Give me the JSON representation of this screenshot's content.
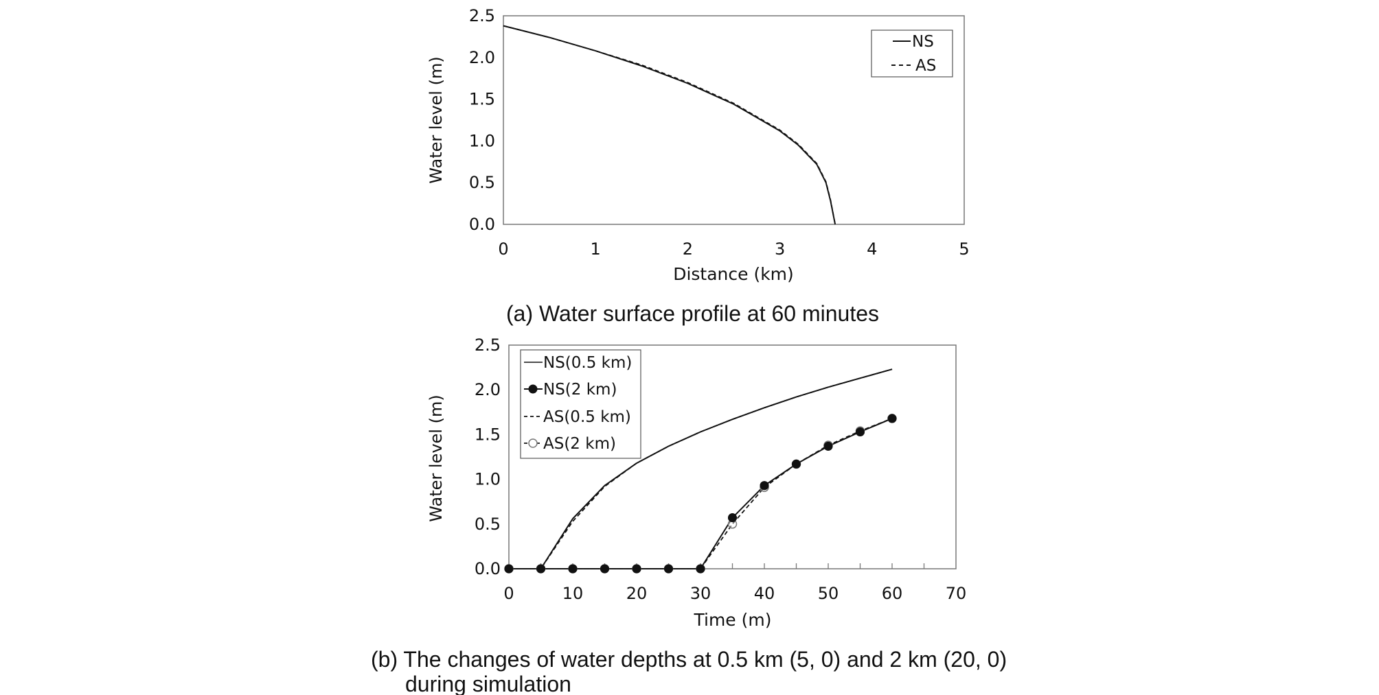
{
  "chart_data": [
    {
      "type": "line",
      "caption": "(a) Water surface profile at 60 minutes",
      "xlabel": "Distance (km)",
      "ylabel": "Water level (m)",
      "xlim": [
        0,
        5
      ],
      "ylim": [
        0,
        2.5
      ],
      "xticks": [
        "0",
        "1",
        "2",
        "3",
        "4",
        "5"
      ],
      "yticks": [
        "0.0",
        "0.5",
        "1.0",
        "1.5",
        "2.0",
        "2.5"
      ],
      "grid": false,
      "legend": "top-right",
      "series": [
        {
          "name": "NS",
          "style": "solid",
          "x": [
            0,
            0.5,
            1.0,
            1.5,
            2.0,
            2.5,
            3.0,
            3.2,
            3.4,
            3.5,
            3.55,
            3.6
          ],
          "y": [
            2.38,
            2.24,
            2.08,
            1.9,
            1.69,
            1.44,
            1.12,
            0.95,
            0.72,
            0.5,
            0.28,
            0.0
          ]
        },
        {
          "name": "AS",
          "style": "dashed",
          "x": [
            0,
            0.5,
            1.0,
            1.5,
            2.0,
            2.5,
            3.0,
            3.2,
            3.4,
            3.5,
            3.55,
            3.6
          ],
          "y": [
            2.38,
            2.24,
            2.08,
            1.91,
            1.7,
            1.45,
            1.13,
            0.96,
            0.73,
            0.51,
            0.29,
            0.0
          ]
        }
      ]
    },
    {
      "type": "line",
      "caption_line1": "(b) The changes of water depths at 0.5 km (5, 0) and 2 km (20, 0)",
      "caption_line2": "during simulation",
      "xlabel": "Time (m)",
      "ylabel": "Water level (m)",
      "xlim": [
        0,
        70
      ],
      "ylim": [
        0,
        2.5
      ],
      "xticks": [
        "0",
        "10",
        "20",
        "30",
        "40",
        "50",
        "60",
        "70"
      ],
      "yticks": [
        "0.0",
        "0.5",
        "1.0",
        "1.5",
        "2.0",
        "2.5"
      ],
      "grid": false,
      "legend": "top-left",
      "series": [
        {
          "name": "NS(0.5 km)",
          "style": "solid",
          "marker": "none",
          "x": [
            0,
            5,
            10,
            15,
            20,
            25,
            30,
            35,
            40,
            45,
            50,
            55,
            60
          ],
          "y": [
            0,
            0,
            0.56,
            0.93,
            1.18,
            1.37,
            1.53,
            1.67,
            1.8,
            1.92,
            2.03,
            2.13,
            2.23
          ]
        },
        {
          "name": "NS(2 km)",
          "style": "solid",
          "marker": "filled-circle",
          "x": [
            0,
            5,
            10,
            15,
            20,
            25,
            30,
            35,
            40,
            45,
            50,
            55,
            60
          ],
          "y": [
            0,
            0,
            0,
            0,
            0,
            0,
            0,
            0.57,
            0.93,
            1.17,
            1.37,
            1.53,
            1.68
          ]
        },
        {
          "name": "AS(0.5 km)",
          "style": "dashed",
          "marker": "none",
          "x": [
            0,
            5,
            10,
            15,
            20,
            25,
            30,
            35,
            40,
            45,
            50,
            55,
            60
          ],
          "y": [
            0,
            0,
            0.53,
            0.92,
            1.18,
            1.37,
            1.53,
            1.67,
            1.8,
            1.92,
            2.03,
            2.13,
            2.23
          ]
        },
        {
          "name": "AS(2 km)",
          "style": "dashed",
          "marker": "open-circle",
          "x": [
            0,
            5,
            10,
            15,
            20,
            25,
            30,
            35,
            40,
            45,
            50,
            55,
            60
          ],
          "y": [
            0,
            0,
            0,
            0,
            0,
            0,
            0,
            0.5,
            0.91,
            1.17,
            1.38,
            1.54,
            1.68
          ]
        }
      ]
    }
  ]
}
